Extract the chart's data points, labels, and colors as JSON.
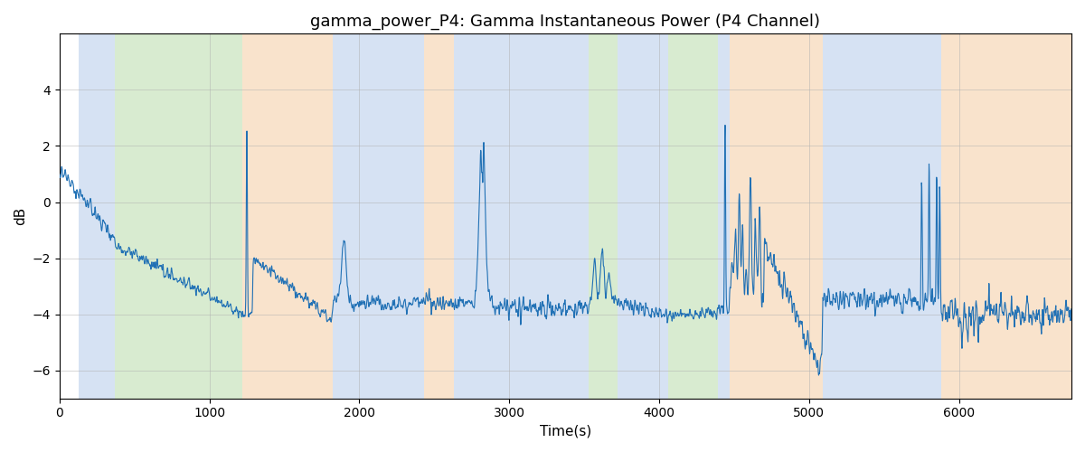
{
  "title": "gamma_power_P4: Gamma Instantaneous Power (P4 Channel)",
  "xlabel": "Time(s)",
  "ylabel": "dB",
  "xlim": [
    0,
    6750
  ],
  "ylim": [
    -7,
    6
  ],
  "yticks": [
    -6,
    -4,
    -2,
    0,
    2,
    4
  ],
  "figsize": [
    12,
    5
  ],
  "dpi": 100,
  "line_color": "#2171b5",
  "line_width": 0.8,
  "background_color": "#ffffff",
  "grid_color": "#b0b0b0",
  "bands": [
    {
      "xmin": 130,
      "xmax": 370,
      "color": "#aec6e8",
      "alpha": 0.5
    },
    {
      "xmin": 370,
      "xmax": 1220,
      "color": "#b2d9a3",
      "alpha": 0.5
    },
    {
      "xmin": 1220,
      "xmax": 1820,
      "color": "#f5c99a",
      "alpha": 0.5
    },
    {
      "xmin": 1820,
      "xmax": 2430,
      "color": "#aec6e8",
      "alpha": 0.5
    },
    {
      "xmin": 2430,
      "xmax": 2630,
      "color": "#f5c99a",
      "alpha": 0.5
    },
    {
      "xmin": 2630,
      "xmax": 3530,
      "color": "#aec6e8",
      "alpha": 0.5
    },
    {
      "xmin": 3530,
      "xmax": 3720,
      "color": "#b2d9a3",
      "alpha": 0.5
    },
    {
      "xmin": 3720,
      "xmax": 4060,
      "color": "#aec6e8",
      "alpha": 0.5
    },
    {
      "xmin": 4060,
      "xmax": 4390,
      "color": "#b2d9a3",
      "alpha": 0.5
    },
    {
      "xmin": 4390,
      "xmax": 4470,
      "color": "#aec6e8",
      "alpha": 0.5
    },
    {
      "xmin": 4470,
      "xmax": 5090,
      "color": "#f5c99a",
      "alpha": 0.5
    },
    {
      "xmin": 5090,
      "xmax": 5880,
      "color": "#aec6e8",
      "alpha": 0.5
    },
    {
      "xmin": 5880,
      "xmax": 6750,
      "color": "#f5c99a",
      "alpha": 0.5
    }
  ]
}
